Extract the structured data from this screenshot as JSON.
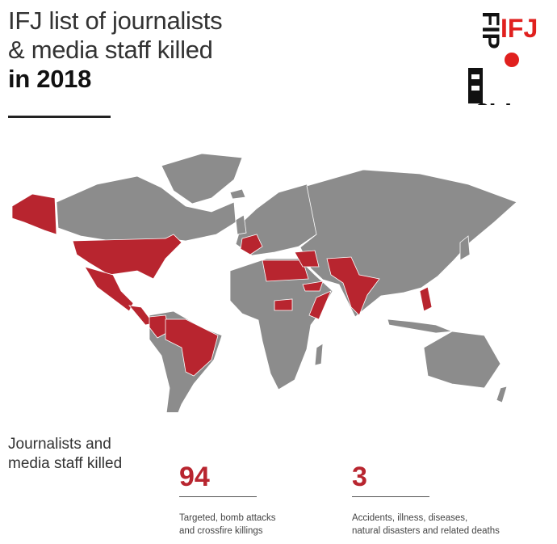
{
  "header": {
    "title_line1": "IFJ list of journalists",
    "title_line2": "& media staff killed",
    "title_line3": "in 2018"
  },
  "logo": {
    "text_red": "IFJ",
    "text_black_left": "FIP",
    "text_black_bottom": "IJF",
    "alt_vertical": "FIP"
  },
  "map": {
    "land_color": "#8c8c8c",
    "highlight_color": "#b8252f",
    "border_color": "#ffffff"
  },
  "stats": {
    "label": [
      "Journalists and",
      "media staff killed"
    ],
    "items": [
      {
        "value": "94",
        "desc": [
          "Targeted, bomb attacks",
          "and crossfire killings"
        ]
      },
      {
        "value": "3",
        "desc": [
          "Accidents, illness, diseases,",
          "natural disasters and related deaths"
        ]
      }
    ],
    "accent_color": "#b8252f"
  }
}
